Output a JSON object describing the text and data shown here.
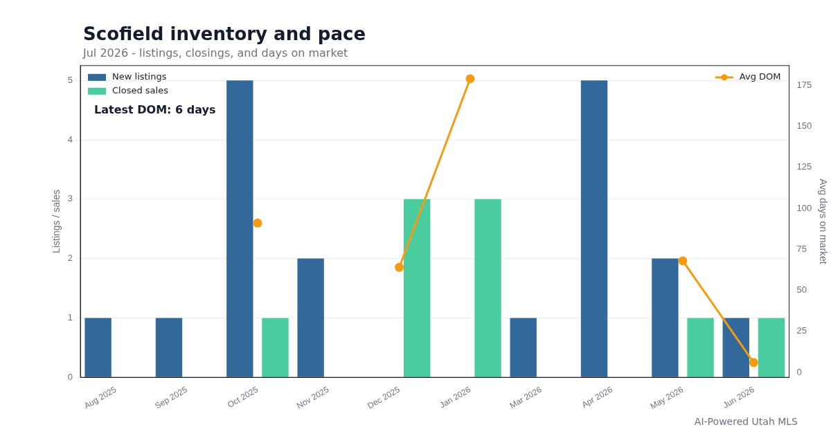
{
  "chart_data": {
    "type": "bar",
    "title": "Scofield inventory and pace",
    "subtitle": "Jul 2026 - listings, closings, and days on market",
    "ylabel": "Listings / sales",
    "y2label": "Avg days on market",
    "categories": [
      "Aug 2025",
      "Sep 2025",
      "Oct 2025",
      "Nov 2025",
      "Dec 2025",
      "Jan 2026",
      "Mar 2026",
      "Apr 2026",
      "May 2026",
      "Jun 2026"
    ],
    "series": [
      {
        "name": "New listings",
        "color": "#33689a",
        "values": [
          1,
          1,
          5,
          2,
          0,
          0,
          1,
          5,
          2,
          1
        ]
      },
      {
        "name": "Closed sales",
        "color": "#4bcc9e",
        "values": [
          0,
          0,
          1,
          0,
          3,
          3,
          0,
          0,
          1,
          1
        ]
      },
      {
        "name": "Avg DOM",
        "type": "line",
        "axis": "y2",
        "color": "#f39c12",
        "marker": "circle",
        "line_style": "solid",
        "values": [
          null,
          null,
          91,
          null,
          64,
          179,
          null,
          null,
          68,
          6
        ]
      }
    ],
    "ylim": [
      0,
      5.25
    ],
    "yticks": [
      0,
      1,
      2,
      3,
      4,
      5
    ],
    "y2lim": [
      -3,
      187
    ],
    "y2ticks": [
      0,
      25,
      50,
      75,
      100,
      125,
      150,
      175
    ],
    "grid": "y",
    "legend": "top left",
    "annotations": [
      "Latest DOM: 6 days",
      "AI-Powered Utah MLS"
    ]
  }
}
